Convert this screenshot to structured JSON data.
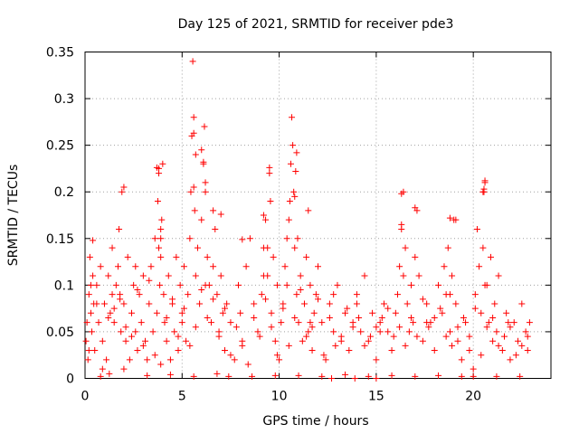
{
  "chart_data": {
    "type": "scatter",
    "title": "Day 125 of 2021, SRMTID for receiver pde3",
    "xlabel": "GPS time / hours",
    "ylabel": "SRMTID / TECUs",
    "xlim": [
      0,
      24
    ],
    "ylim": [
      0,
      0.35
    ],
    "x_ticks": [
      0,
      5,
      10,
      15,
      20
    ],
    "x_tick_labels": [
      "0",
      "5",
      "10",
      "15",
      "20"
    ],
    "y_ticks": [
      0,
      0.05,
      0.1,
      0.15,
      0.2,
      0.25,
      0.3,
      0.35
    ],
    "y_tick_labels": [
      "0",
      "0.05",
      "0.1",
      "0.15",
      "0.2",
      "0.25",
      "0.3",
      "0.35"
    ],
    "grid": true,
    "marker": "+",
    "series": [
      {
        "name": "SRMTID",
        "color": "#ff0000",
        "x": [
          0.05,
          0.1,
          0.15,
          0.2,
          0.25,
          0.3,
          0.35,
          0.4,
          0.45,
          0.5,
          0.6,
          0.7,
          0.8,
          0.9,
          1.0,
          1.1,
          1.2,
          1.25,
          1.3,
          1.4,
          1.5,
          1.6,
          1.7,
          1.75,
          1.8,
          1.85,
          1.9,
          2.0,
          2.1,
          2.2,
          2.3,
          2.4,
          2.5,
          2.6,
          2.7,
          2.8,
          2.9,
          3.0,
          3.1,
          3.2,
          3.3,
          3.4,
          3.5,
          3.6,
          3.7,
          3.75,
          3.8,
          3.85,
          3.9,
          3.95,
          4.0,
          4.05,
          4.1,
          4.2,
          4.3,
          4.4,
          4.5,
          4.6,
          4.7,
          4.8,
          4.9,
          5.0,
          5.1,
          5.2,
          5.3,
          5.4,
          5.45,
          5.5,
          5.55,
          5.6,
          5.65,
          5.7,
          5.8,
          5.9,
          6.0,
          6.1,
          6.15,
          6.2,
          6.3,
          6.4,
          6.5,
          6.6,
          6.7,
          6.8,
          6.9,
          7.0,
          7.1,
          7.2,
          7.3,
          7.5,
          7.7,
          7.9,
          8.1,
          8.3,
          8.5,
          8.7,
          8.9,
          9.1,
          9.2,
          9.3,
          9.4,
          9.5,
          9.55,
          9.6,
          9.7,
          9.8,
          9.9,
          10.0,
          10.1,
          10.2,
          10.3,
          10.4,
          10.5,
          10.55,
          10.6,
          10.65,
          10.7,
          10.75,
          10.8,
          10.9,
          11.0,
          11.1,
          11.2,
          11.3,
          11.4,
          11.5,
          11.6,
          11.7,
          11.8,
          11.9,
          12.0,
          12.2,
          12.4,
          12.6,
          12.8,
          13.0,
          13.2,
          13.4,
          13.6,
          13.8,
          14.0,
          14.2,
          14.4,
          14.6,
          14.8,
          15.0,
          15.2,
          15.4,
          15.6,
          15.8,
          16.0,
          16.1,
          16.2,
          16.3,
          16.4,
          16.5,
          16.6,
          16.7,
          16.8,
          16.9,
          17.0,
          17.1,
          17.2,
          17.4,
          17.6,
          17.8,
          18.0,
          18.2,
          18.4,
          18.5,
          18.6,
          18.7,
          18.8,
          18.9,
          19.0,
          19.1,
          19.2,
          19.4,
          19.6,
          19.8,
          20.0,
          20.1,
          20.2,
          20.3,
          20.4,
          20.5,
          20.55,
          20.6,
          20.7,
          20.8,
          20.9,
          21.0,
          21.1,
          21.2,
          21.3,
          21.5,
          21.7,
          21.9,
          22.1,
          22.3,
          22.5,
          22.7,
          22.8,
          22.9,
          0.3,
          0.6,
          0.9,
          1.2,
          1.5,
          1.8,
          2.1,
          2.4,
          2.7,
          3.0,
          3.3,
          3.6,
          3.9,
          4.2,
          4.5,
          4.8,
          5.1,
          5.4,
          5.7,
          6.0,
          6.3,
          6.6,
          6.9,
          7.2,
          7.5,
          7.8,
          8.1,
          8.4,
          8.7,
          9.0,
          9.3,
          9.6,
          9.9,
          10.2,
          10.5,
          10.8,
          11.1,
          11.4,
          11.7,
          12.0,
          12.3,
          12.6,
          12.9,
          13.2,
          13.5,
          13.8,
          14.1,
          14.4,
          14.7,
          15.0,
          15.3,
          15.6,
          15.9,
          16.2,
          16.5,
          16.8,
          17.1,
          17.4,
          17.7,
          18.0,
          18.3,
          18.6,
          18.9,
          19.2,
          19.5,
          19.8,
          20.1,
          20.4,
          20.7,
          21.0,
          21.3,
          21.6,
          21.9,
          22.2,
          22.5,
          22.8,
          0.2,
          0.8,
          1.4,
          2.0,
          2.6,
          3.2,
          3.8,
          4.4,
          5.0,
          5.6,
          6.2,
          6.8,
          7.4,
          8.0,
          8.6,
          9.2,
          9.8,
          10.4,
          11.0,
          11.6,
          12.2,
          12.8,
          13.4,
          14.0,
          14.6,
          15.2,
          15.8,
          16.4,
          17.0,
          17.6,
          18.2,
          18.8,
          19.4,
          20.0,
          20.6,
          21.2,
          21.8,
          22.4,
          3.7,
          3.8,
          3.9,
          5.6,
          5.6,
          5.7,
          6.0,
          6.1,
          6.2,
          6.6,
          7.0,
          9.2,
          9.4,
          9.5,
          10.8,
          10.85,
          10.9,
          10.95,
          11.5,
          16.3,
          17.0,
          18.8,
          19.1,
          20.5,
          20.55,
          20.6,
          2.0,
          16.3,
          3.9,
          0.4,
          8.1,
          15.0,
          13.9,
          12.7
        ],
        "y": [
          0.04,
          0.06,
          0.02,
          0.09,
          0.13,
          0.07,
          0.05,
          0.11,
          0.08,
          0.03,
          0.1,
          0.06,
          0.12,
          0.04,
          0.08,
          0.02,
          0.11,
          0.005,
          0.07,
          0.14,
          0.06,
          0.1,
          0.12,
          0.16,
          0.09,
          0.05,
          0.2,
          0.08,
          0.04,
          0.13,
          0.02,
          0.07,
          0.1,
          0.05,
          0.03,
          0.09,
          0.06,
          0.11,
          0.04,
          0.02,
          0.08,
          0.12,
          0.05,
          0.15,
          0.07,
          0.19,
          0.22,
          0.1,
          0.13,
          0.17,
          0.23,
          0.09,
          0.06,
          0.04,
          0.11,
          0.02,
          0.08,
          0.05,
          0.13,
          0.03,
          0.1,
          0.07,
          0.12,
          0.04,
          0.09,
          0.15,
          0.2,
          0.26,
          0.34,
          0.28,
          0.18,
          0.11,
          0.14,
          0.08,
          0.17,
          0.23,
          0.27,
          0.2,
          0.13,
          0.1,
          0.06,
          0.12,
          0.16,
          0.09,
          0.05,
          0.11,
          0.07,
          0.03,
          0.08,
          0.06,
          0.02,
          0.1,
          0.04,
          0.12,
          0.15,
          0.08,
          0.05,
          0.09,
          0.14,
          0.17,
          0.11,
          0.22,
          0.19,
          0.07,
          0.13,
          0.04,
          0.1,
          0.02,
          0.06,
          0.08,
          0.12,
          0.15,
          0.17,
          0.19,
          0.23,
          0.28,
          0.25,
          0.2,
          0.14,
          0.09,
          0.06,
          0.11,
          0.04,
          0.08,
          0.13,
          0.05,
          0.1,
          0.03,
          0.07,
          0.09,
          0.12,
          0.06,
          0.02,
          0.08,
          0.05,
          0.1,
          0.04,
          0.07,
          0.03,
          0.06,
          0.09,
          0.05,
          0.11,
          0.04,
          0.07,
          0.02,
          0.06,
          0.08,
          0.05,
          0.03,
          0.07,
          0.09,
          0.12,
          0.16,
          0.2,
          0.14,
          0.08,
          0.05,
          0.1,
          0.06,
          0.13,
          0.18,
          0.11,
          0.04,
          0.08,
          0.06,
          0.03,
          0.1,
          0.07,
          0.12,
          0.09,
          0.14,
          0.05,
          0.11,
          0.17,
          0.08,
          0.04,
          0.02,
          0.06,
          0.03,
          0.01,
          0.09,
          0.16,
          0.12,
          0.07,
          0.14,
          0.2,
          0.21,
          0.1,
          0.06,
          0.13,
          0.04,
          0.08,
          0.05,
          0.11,
          0.03,
          0.07,
          0.02,
          0.06,
          0.04,
          0.08,
          0.05,
          0.03,
          0.06,
          0.1,
          0.08,
          0.01,
          0.065,
          0.075,
          0.085,
          0.055,
          0.045,
          0.095,
          0.035,
          0.105,
          0.025,
          0.015,
          0.065,
          0.085,
          0.045,
          0.075,
          0.035,
          0.055,
          0.095,
          0.065,
          0.085,
          0.045,
          0.075,
          0.025,
          0.055,
          0.035,
          0.015,
          0.065,
          0.045,
          0.085,
          0.055,
          0.025,
          0.075,
          0.035,
          0.065,
          0.095,
          0.045,
          0.055,
          0.085,
          0.025,
          0.065,
          0.035,
          0.045,
          0.075,
          0.055,
          0.065,
          0.035,
          0.045,
          0.055,
          0.065,
          0.075,
          0.045,
          0.055,
          0.035,
          0.065,
          0.045,
          0.085,
          0.055,
          0.065,
          0.075,
          0.045,
          0.035,
          0.055,
          0.065,
          0.045,
          0.075,
          0.025,
          0.055,
          0.065,
          0.035,
          0.045,
          0.055,
          0.025,
          0.035,
          0.045,
          0.03,
          0.002,
          0.09,
          0.01,
          0.12,
          0.003,
          0.14,
          0.004,
          0.06,
          0.002,
          0.1,
          0.005,
          0.002,
          0.07,
          0.002,
          0.11,
          0.003,
          0.1,
          0.003,
          0.06,
          0.002,
          0.09,
          0.004,
          0.08,
          0.002,
          0.05,
          0.003,
          0.11,
          0.002,
          0.06,
          0.003,
          0.09,
          0.002,
          0.002,
          0.1,
          0.002,
          0.06,
          0.002,
          0.226,
          0.225,
          0.16,
          0.205,
          0.263,
          0.24,
          0.245,
          0.232,
          0.21,
          0.18,
          0.176,
          0.175,
          0.14,
          0.226,
          0.195,
          0.222,
          0.242,
          0.15,
          0.18,
          0.198,
          0.183,
          0.172,
          0.17,
          0.2,
          0.203,
          0.212,
          0.205,
          0.165,
          0.15,
          0.148,
          0.149,
          0.0,
          0.0,
          0.0
        ]
      }
    ]
  }
}
